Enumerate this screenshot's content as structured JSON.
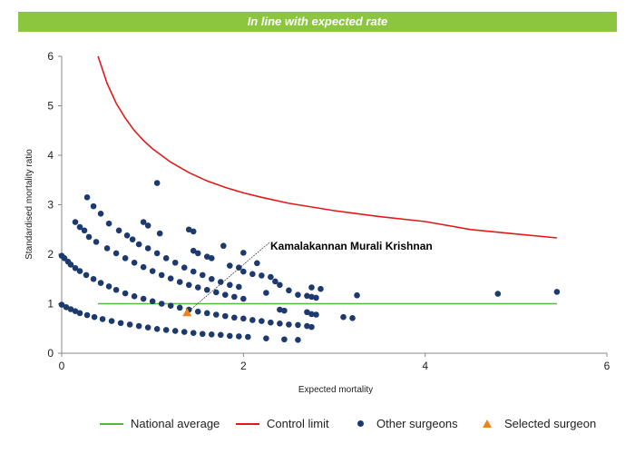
{
  "banner": {
    "text": "In line with expected rate",
    "color": "#8cc63f"
  },
  "chart_data": {
    "type": "scatter",
    "xlabel": "Expected mortality",
    "ylabel": "Standardised mortality ratio",
    "xlim": [
      0,
      6
    ],
    "ylim": [
      0,
      6
    ],
    "xticks": [
      0,
      2,
      4,
      6
    ],
    "yticks": [
      0,
      1,
      2,
      3,
      4,
      5,
      6
    ],
    "grid": false,
    "legend_position": "bottom",
    "national_average": {
      "name": "National average",
      "color": "#5ab540",
      "x": [
        0.4,
        5.45
      ],
      "y": [
        1,
        1
      ]
    },
    "control_limit": {
      "name": "Control limit",
      "color": "#e01a1a",
      "points": [
        [
          0.4,
          6.0
        ],
        [
          0.5,
          5.45
        ],
        [
          0.6,
          5.05
        ],
        [
          0.7,
          4.75
        ],
        [
          0.8,
          4.5
        ],
        [
          0.9,
          4.3
        ],
        [
          1.0,
          4.13
        ],
        [
          1.2,
          3.86
        ],
        [
          1.4,
          3.65
        ],
        [
          1.6,
          3.48
        ],
        [
          1.8,
          3.35
        ],
        [
          2.0,
          3.24
        ],
        [
          2.2,
          3.15
        ],
        [
          2.5,
          3.03
        ],
        [
          3.0,
          2.88
        ],
        [
          3.5,
          2.76
        ],
        [
          4.0,
          2.66
        ],
        [
          4.5,
          2.5
        ],
        [
          5.0,
          2.41
        ],
        [
          5.45,
          2.33
        ]
      ]
    },
    "other_surgeons": {
      "name": "Other surgeons",
      "color": "#1c3a6e",
      "points": [
        [
          0.28,
          3.15
        ],
        [
          0.35,
          2.97
        ],
        [
          0.43,
          2.82
        ],
        [
          0.15,
          2.65
        ],
        [
          0.2,
          2.55
        ],
        [
          0.25,
          2.48
        ],
        [
          0.3,
          2.35
        ],
        [
          0.38,
          2.25
        ],
        [
          0.5,
          2.12
        ],
        [
          0.6,
          2.02
        ],
        [
          0.7,
          1.92
        ],
        [
          0.8,
          1.83
        ],
        [
          0.9,
          1.74
        ],
        [
          1.0,
          1.66
        ],
        [
          1.1,
          1.58
        ],
        [
          1.2,
          1.51
        ],
        [
          1.3,
          1.44
        ],
        [
          1.4,
          1.38
        ],
        [
          1.5,
          1.33
        ],
        [
          1.6,
          1.28
        ],
        [
          1.7,
          1.23
        ],
        [
          1.8,
          1.18
        ],
        [
          1.9,
          1.14
        ],
        [
          2.0,
          1.1
        ],
        [
          0.52,
          2.62
        ],
        [
          0.63,
          2.48
        ],
        [
          0.72,
          2.38
        ],
        [
          0.78,
          2.3
        ],
        [
          0.85,
          2.2
        ],
        [
          0.95,
          2.12
        ],
        [
          1.05,
          2.02
        ],
        [
          1.15,
          1.92
        ],
        [
          1.25,
          1.83
        ],
        [
          1.35,
          1.73
        ],
        [
          1.45,
          1.65
        ],
        [
          1.55,
          1.58
        ],
        [
          1.65,
          1.5
        ],
        [
          1.75,
          1.44
        ],
        [
          1.85,
          1.38
        ],
        [
          1.95,
          1.34
        ],
        [
          0.9,
          2.65
        ],
        [
          0.95,
          2.58
        ],
        [
          1.08,
          2.42
        ],
        [
          1.05,
          3.44
        ],
        [
          1.4,
          2.5
        ],
        [
          1.45,
          2.46
        ],
        [
          1.45,
          2.07
        ],
        [
          1.5,
          2.02
        ],
        [
          1.78,
          2.17
        ],
        [
          1.6,
          1.95
        ],
        [
          1.65,
          1.92
        ],
        [
          1.85,
          1.77
        ],
        [
          1.95,
          1.73
        ],
        [
          2.0,
          2.03
        ],
        [
          2.0,
          1.65
        ],
        [
          2.1,
          1.6
        ],
        [
          2.2,
          1.57
        ],
        [
          2.3,
          1.54
        ],
        [
          2.15,
          1.82
        ],
        [
          2.35,
          1.45
        ],
        [
          2.25,
          1.22
        ],
        [
          2.4,
          1.38
        ],
        [
          2.5,
          1.27
        ],
        [
          2.6,
          1.18
        ],
        [
          2.7,
          1.16
        ],
        [
          2.75,
          1.14
        ],
        [
          2.8,
          1.12
        ],
        [
          2.75,
          1.33
        ],
        [
          2.85,
          1.3
        ],
        [
          3.25,
          1.17
        ],
        [
          4.8,
          1.2
        ],
        [
          5.45,
          1.24
        ],
        [
          2.4,
          0.88
        ],
        [
          2.45,
          0.86
        ],
        [
          2.7,
          0.83
        ],
        [
          2.75,
          0.79
        ],
        [
          2.8,
          0.78
        ],
        [
          2.75,
          0.53
        ],
        [
          3.1,
          0.73
        ],
        [
          3.2,
          0.71
        ],
        [
          0.0,
          1.97
        ],
        [
          0.03,
          1.92
        ],
        [
          0.07,
          1.85
        ],
        [
          0.1,
          1.79
        ],
        [
          0.15,
          1.72
        ],
        [
          0.2,
          1.66
        ],
        [
          0.27,
          1.58
        ],
        [
          0.35,
          1.5
        ],
        [
          0.43,
          1.42
        ],
        [
          0.52,
          1.35
        ],
        [
          0.6,
          1.28
        ],
        [
          0.7,
          1.21
        ],
        [
          0.8,
          1.15
        ],
        [
          0.9,
          1.1
        ],
        [
          1.0,
          1.05
        ],
        [
          1.1,
          1.0
        ],
        [
          1.2,
          0.96
        ],
        [
          1.3,
          0.92
        ],
        [
          1.4,
          0.88
        ],
        [
          1.5,
          0.84
        ],
        [
          1.6,
          0.81
        ],
        [
          1.7,
          0.78
        ],
        [
          1.8,
          0.75
        ],
        [
          1.9,
          0.72
        ],
        [
          2.0,
          0.7
        ],
        [
          2.1,
          0.67
        ],
        [
          2.2,
          0.65
        ],
        [
          2.3,
          0.62
        ],
        [
          2.4,
          0.6
        ],
        [
          2.5,
          0.58
        ],
        [
          2.6,
          0.57
        ],
        [
          2.7,
          0.55
        ],
        [
          0.0,
          0.98
        ],
        [
          0.05,
          0.93
        ],
        [
          0.1,
          0.89
        ],
        [
          0.15,
          0.85
        ],
        [
          0.2,
          0.81
        ],
        [
          0.28,
          0.77
        ],
        [
          0.36,
          0.73
        ],
        [
          0.45,
          0.69
        ],
        [
          0.55,
          0.65
        ],
        [
          0.65,
          0.61
        ],
        [
          0.75,
          0.58
        ],
        [
          0.85,
          0.55
        ],
        [
          0.95,
          0.52
        ],
        [
          1.05,
          0.49
        ],
        [
          1.15,
          0.47
        ],
        [
          1.25,
          0.45
        ],
        [
          1.35,
          0.43
        ],
        [
          1.45,
          0.41
        ],
        [
          1.55,
          0.39
        ],
        [
          1.65,
          0.38
        ],
        [
          1.75,
          0.37
        ],
        [
          1.85,
          0.35
        ],
        [
          1.95,
          0.34
        ],
        [
          2.05,
          0.33
        ],
        [
          2.25,
          0.3
        ],
        [
          2.45,
          0.28
        ],
        [
          2.6,
          0.27
        ]
      ]
    },
    "selected_surgeon": {
      "name": "Selected surgeon",
      "color": "#f0821e",
      "x": 1.38,
      "y": 0.82,
      "label": "Kamalakannan Murali Krishnan"
    }
  }
}
